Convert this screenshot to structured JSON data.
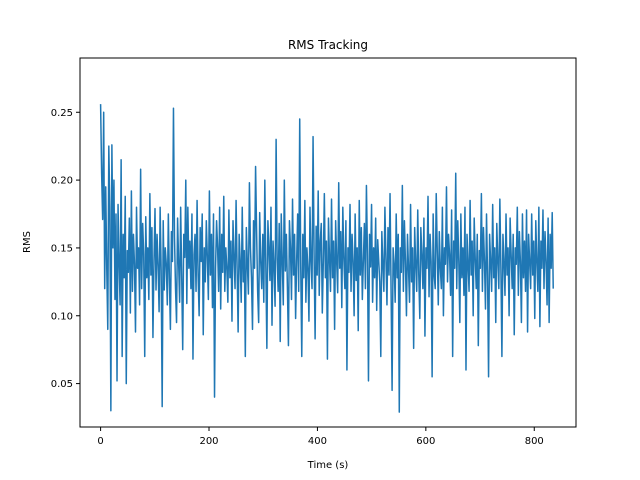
{
  "chart_data": {
    "type": "line",
    "title": "RMS Tracking",
    "xlabel": "Time (s)",
    "ylabel": "RMS",
    "xlim": [
      -38,
      877
    ],
    "ylim": [
      0.018,
      0.29
    ],
    "xticks": [
      0,
      200,
      400,
      600,
      800
    ],
    "xtick_labels": [
      "0",
      "200",
      "400",
      "600",
      "800"
    ],
    "yticks": [
      0.05,
      0.1,
      0.15,
      0.2,
      0.25
    ],
    "ytick_labels": [
      "0.05",
      "0.10",
      "0.15",
      "0.20",
      "0.25"
    ],
    "grid": false,
    "series": [
      {
        "color": "#1f77b4",
        "sampling_step_s": 2,
        "x_end": 835,
        "values": [
          0.256,
          0.205,
          0.171,
          0.25,
          0.12,
          0.195,
          0.135,
          0.09,
          0.225,
          0.18,
          0.03,
          0.226,
          0.15,
          0.2,
          0.112,
          0.175,
          0.052,
          0.182,
          0.14,
          0.108,
          0.215,
          0.07,
          0.16,
          0.128,
          0.188,
          0.05,
          0.148,
          0.132,
          0.172,
          0.102,
          0.192,
          0.118,
          0.16,
          0.138,
          0.088,
          0.18,
          0.135,
          0.15,
          0.108,
          0.208,
          0.12,
          0.168,
          0.145,
          0.07,
          0.173,
          0.128,
          0.15,
          0.112,
          0.19,
          0.13,
          0.165,
          0.084,
          0.14,
          0.179,
          0.119,
          0.16,
          0.137,
          0.103,
          0.18,
          0.133,
          0.033,
          0.17,
          0.119,
          0.15,
          0.138,
          0.108,
          0.175,
          0.128,
          0.09,
          0.162,
          0.14,
          0.253,
          0.158,
          0.12,
          0.095,
          0.172,
          0.14,
          0.11,
          0.18,
          0.13,
          0.075,
          0.16,
          0.143,
          0.2,
          0.109,
          0.18,
          0.135,
          0.155,
          0.12,
          0.175,
          0.068,
          0.145,
          0.16,
          0.118,
          0.185,
          0.13,
          0.1,
          0.165,
          0.14,
          0.175,
          0.086,
          0.15,
          0.125,
          0.17,
          0.143,
          0.112,
          0.192,
          0.13,
          0.16,
          0.106,
          0.175,
          0.04,
          0.135,
          0.17,
          0.15,
          0.118,
          0.18,
          0.105,
          0.16,
          0.132,
          0.188,
          0.118,
          0.15,
          0.135,
          0.11,
          0.178,
          0.128,
          0.155,
          0.096,
          0.17,
          0.143,
          0.12,
          0.185,
          0.135,
          0.088,
          0.16,
          0.14,
          0.11,
          0.18,
          0.125,
          0.148,
          0.07,
          0.165,
          0.138,
          0.116,
          0.198,
          0.15,
          0.128,
          0.09,
          0.17,
          0.135,
          0.21,
          0.162,
          0.118,
          0.095,
          0.176,
          0.14,
          0.12,
          0.16,
          0.11,
          0.2,
          0.135,
          0.076,
          0.17,
          0.15,
          0.126,
          0.18,
          0.093,
          0.155,
          0.136,
          0.107,
          0.23,
          0.142,
          0.118,
          0.168,
          0.081,
          0.175,
          0.14,
          0.108,
          0.2,
          0.133,
          0.16,
          0.121,
          0.078,
          0.17,
          0.15,
          0.112,
          0.186,
          0.13,
          0.16,
          0.098,
          0.14,
          0.175,
          0.118,
          0.245,
          0.136,
          0.07,
          0.16,
          0.128,
          0.185,
          0.11,
          0.15,
          0.135,
          0.096,
          0.18,
          0.14,
          0.12,
          0.232,
          0.145,
          0.083,
          0.166,
          0.13,
          0.192,
          0.115,
          0.155,
          0.168,
          0.102,
          0.14,
          0.19,
          0.128,
          0.155,
          0.068,
          0.172,
          0.143,
          0.118,
          0.186,
          0.128,
          0.155,
          0.09,
          0.17,
          0.14,
          0.117,
          0.198,
          0.135,
          0.162,
          0.106,
          0.18,
          0.142,
          0.12,
          0.17,
          0.06,
          0.15,
          0.132,
          0.182,
          0.118,
          0.16,
          0.14,
          0.1,
          0.175,
          0.126,
          0.15,
          0.089,
          0.185,
          0.13,
          0.165,
          0.112,
          0.14,
          0.168,
          0.12,
          0.196,
          0.145,
          0.052,
          0.16,
          0.136,
          0.182,
          0.11,
          0.15,
          0.128,
          0.172,
          0.104,
          0.156,
          0.14,
          0.125,
          0.07,
          0.162,
          0.138,
          0.118,
          0.18,
          0.142,
          0.108,
          0.165,
          0.13,
          0.19,
          0.12,
          0.045,
          0.15,
          0.138,
          0.11,
          0.175,
          0.128,
          0.16,
          0.029,
          0.15,
          0.132,
          0.196,
          0.118,
          0.17,
          0.14,
          0.1,
          0.16,
          0.135,
          0.11,
          0.182,
          0.125,
          0.15,
          0.076,
          0.165,
          0.138,
          0.118,
          0.178,
          0.13,
          0.098,
          0.165,
          0.145,
          0.12,
          0.172,
          0.085,
          0.15,
          0.135,
          0.188,
          0.114,
          0.16,
          0.14,
          0.055,
          0.175,
          0.13,
          0.12,
          0.19,
          0.148,
          0.108,
          0.162,
          0.135,
          0.12,
          0.18,
          0.1,
          0.15,
          0.138,
          0.195,
          0.125,
          0.16,
          0.145,
          0.115,
          0.178,
          0.07,
          0.155,
          0.135,
          0.205,
          0.12,
          0.17,
          0.14,
          0.095,
          0.175,
          0.128,
          0.15,
          0.115,
          0.18,
          0.06,
          0.16,
          0.138,
          0.118,
          0.185,
          0.13,
          0.155,
          0.1,
          0.172,
          0.142,
          0.12,
          0.16,
          0.078,
          0.148,
          0.135,
          0.19,
          0.118,
          0.165,
          0.14,
          0.105,
          0.175,
          0.13,
          0.055,
          0.16,
          0.14,
          0.118,
          0.182,
          0.128,
          0.15,
          0.095,
          0.168,
          0.14,
          0.12,
          0.186,
          0.135,
          0.07,
          0.16,
          0.14,
          0.115,
          0.175,
          0.13,
          0.15,
          0.1,
          0.172,
          0.145,
          0.12,
          0.16,
          0.086,
          0.15,
          0.138,
          0.18,
          0.115,
          0.162,
          0.14,
          0.095,
          0.175,
          0.128,
          0.155,
          0.118,
          0.178,
          0.088,
          0.16,
          0.14,
          0.12,
          0.175,
          0.13,
          0.155,
          0.098,
          0.17,
          0.14,
          0.118,
          0.18,
          0.092,
          0.155,
          0.135,
          0.178,
          0.12,
          0.162,
          0.14,
          0.108,
          0.172,
          0.095,
          0.16,
          0.135,
          0.176,
          0.12
        ]
      }
    ]
  }
}
